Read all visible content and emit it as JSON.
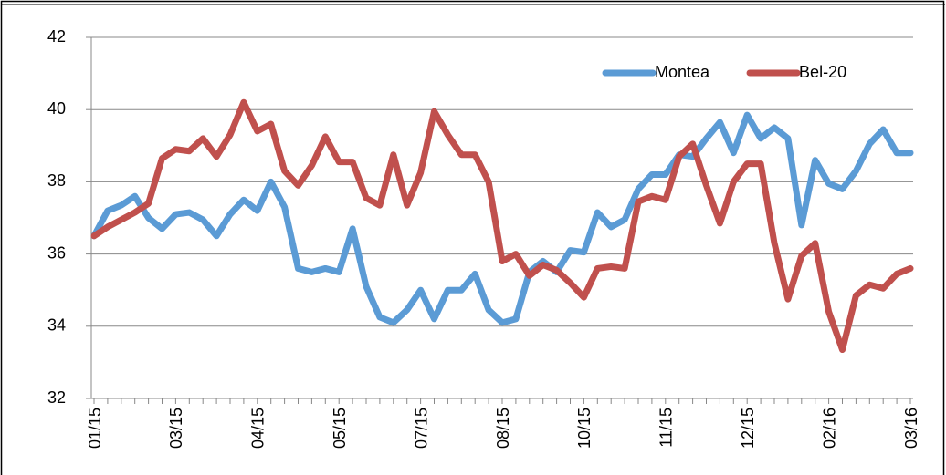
{
  "chart_data": {
    "type": "line",
    "categories": [
      "01/15",
      null,
      null,
      null,
      null,
      null,
      "03/15",
      null,
      null,
      null,
      null,
      null,
      "04/15",
      null,
      null,
      null,
      null,
      null,
      "05/15",
      null,
      null,
      null,
      null,
      null,
      "07/15",
      null,
      null,
      null,
      null,
      null,
      "08/15",
      null,
      null,
      null,
      null,
      null,
      "10/15",
      null,
      null,
      null,
      null,
      null,
      "11/15",
      null,
      null,
      null,
      null,
      null,
      "12/15",
      null,
      null,
      null,
      null,
      null,
      "02/16",
      null,
      null,
      null,
      null,
      null,
      "03/16"
    ],
    "series": [
      {
        "name": "Montea",
        "color": "#5b9bd5",
        "values": [
          36.5,
          37.2,
          37.35,
          37.6,
          37.0,
          36.7,
          37.1,
          37.15,
          36.95,
          36.5,
          37.1,
          37.5,
          37.2,
          38.0,
          37.3,
          35.6,
          35.5,
          35.6,
          35.5,
          36.7,
          35.1,
          34.25,
          34.1,
          34.45,
          35.0,
          34.2,
          35.0,
          35.0,
          35.45,
          34.45,
          34.1,
          34.2,
          35.5,
          35.8,
          35.5,
          36.1,
          36.05,
          37.15,
          36.75,
          36.95,
          37.8,
          38.2,
          38.2,
          38.75,
          38.7,
          39.2,
          39.65,
          38.8,
          39.85,
          39.2,
          39.5,
          39.2,
          36.8,
          38.6,
          37.95,
          37.8,
          38.3,
          39.05,
          39.45,
          38.8,
          38.8
        ]
      },
      {
        "name": "Bel-20",
        "color": "#c0504d",
        "values": [
          36.5,
          36.75,
          36.95,
          37.15,
          37.4,
          38.65,
          38.9,
          38.85,
          39.2,
          38.7,
          39.3,
          40.2,
          39.4,
          39.6,
          38.3,
          37.9,
          38.45,
          39.25,
          38.55,
          38.55,
          37.55,
          37.35,
          38.75,
          37.35,
          38.25,
          39.95,
          39.3,
          38.75,
          38.75,
          38.0,
          35.8,
          36.0,
          35.4,
          35.7,
          35.55,
          35.2,
          34.8,
          35.6,
          35.65,
          35.6,
          37.45,
          37.6,
          37.5,
          38.7,
          39.05,
          37.9,
          36.85,
          38.0,
          38.5,
          38.5,
          36.3,
          34.75,
          35.95,
          36.3,
          34.4,
          33.35,
          34.85,
          35.15,
          35.05,
          35.45,
          35.6
        ]
      }
    ],
    "ylim": [
      32,
      42
    ],
    "yticks": [
      32,
      34,
      36,
      38,
      40,
      42
    ],
    "grid": true,
    "legend": "upper right"
  }
}
